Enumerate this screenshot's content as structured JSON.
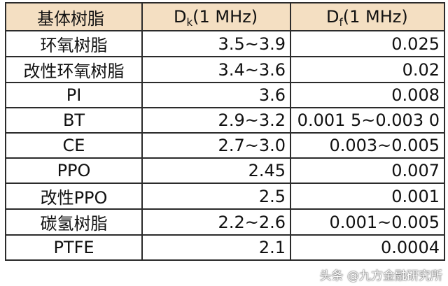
{
  "headers": {
    "resin": "基体树脂",
    "dk_main": "D",
    "dk_sub": "k",
    "dk_freq": "(1 MHz)",
    "df_main": "D",
    "df_sub": "f",
    "df_freq": "(1 MHz)"
  },
  "rows": [
    {
      "name": "环氧树脂",
      "dk": "3.5~3.9",
      "df": "0.025"
    },
    {
      "name": "改性环氧树脂",
      "dk": "3.4~3.6",
      "df": "0.02"
    },
    {
      "name": "PI",
      "dk": "3.6",
      "df": "0.008"
    },
    {
      "name": "BT",
      "dk": "2.9~3.2",
      "df": "0.001 5~0.003 0"
    },
    {
      "name": "CE",
      "dk": "2.7~3.0",
      "df": "0.003~0.005"
    },
    {
      "name": "PPO",
      "dk": "2.45",
      "df": "0.007"
    },
    {
      "name": "改性PPO",
      "dk": "2.5",
      "df": "0.001"
    },
    {
      "name": "碳氢树脂",
      "dk": "2.2~2.6",
      "df": "0.001~0.005"
    },
    {
      "name": "PTFE",
      "dk": "2.1",
      "df": "0.0004"
    }
  ],
  "watermark": "头条 @九方金融研究所",
  "colors": {
    "header_bg": "#f4dfc2",
    "border": "#2b2b2b"
  }
}
